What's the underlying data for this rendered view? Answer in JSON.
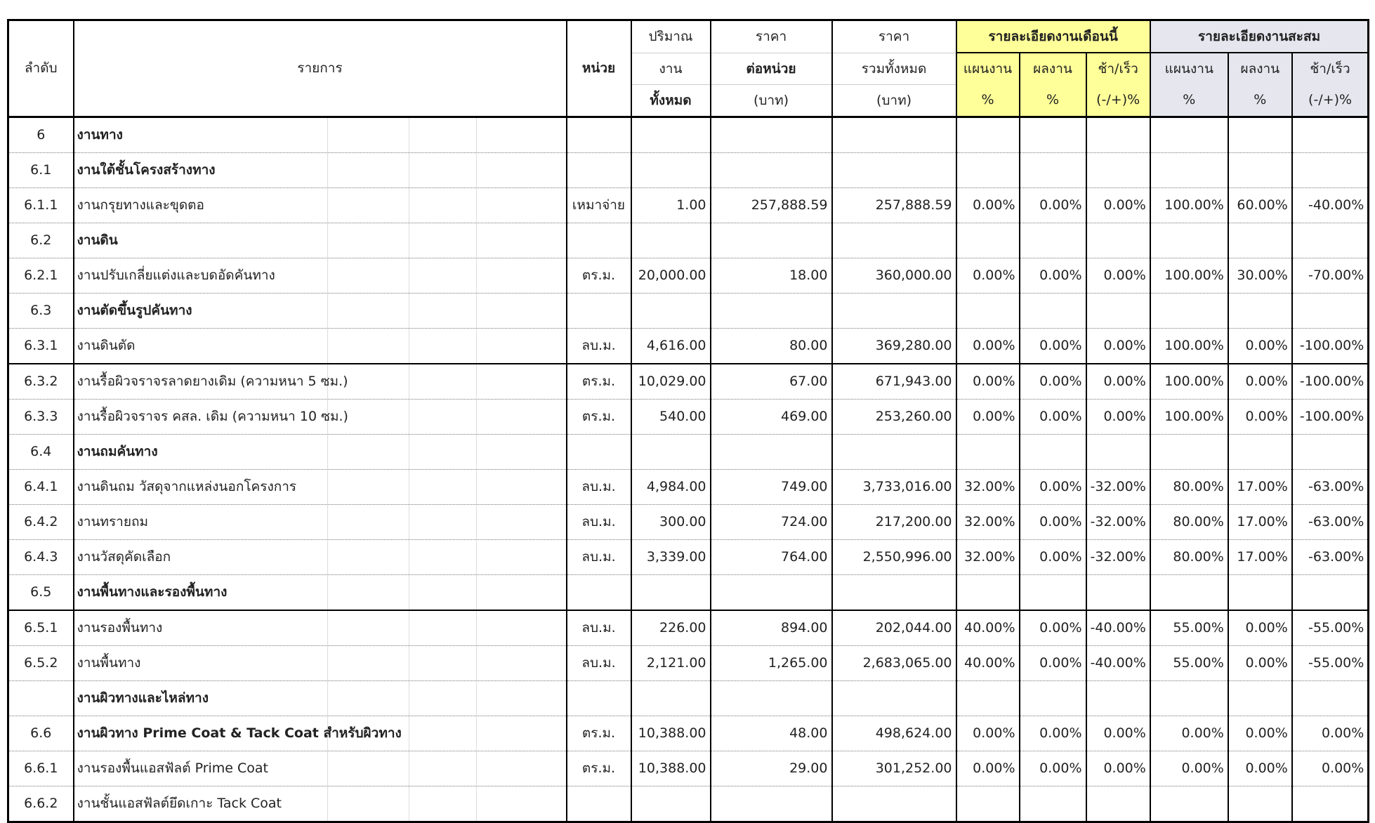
{
  "header": {
    "seq": "ลำดับ",
    "item": "รายการ",
    "unit": "หน่วย",
    "qty": [
      "ปริมาณ",
      "งาน",
      "ทั้งหมด"
    ],
    "unit_price": [
      "ราคา",
      "ต่อหน่วย",
      "(บาท)"
    ],
    "total_price": [
      "ราคา",
      "รวมทั้งหมด",
      "(บาท)"
    ],
    "this_month": "รายละเอียดงานเดือนนี้",
    "cumulative": "รายละเอียดงานสะสม",
    "sub": [
      [
        "แผนงาน",
        "%"
      ],
      [
        "ผลงาน",
        "%"
      ],
      [
        "ช้า/เร็ว",
        "(-/+)%"
      ]
    ]
  },
  "colors": {
    "this_month_bg": "#ffff99",
    "cumulative_bg": "#e6e6ef"
  },
  "rows": [
    {
      "seq": "6",
      "item": "งานทาง",
      "bold": true
    },
    {
      "seq": "6.1",
      "item": "งานใต้ชั้นโครงสร้างทาง",
      "bold": true
    },
    {
      "seq": "6.1.1",
      "item": "งานกรุยทางและขุดตอ",
      "unit": "เหมาจ่าย",
      "qty": "1.00",
      "price": "257,888.59",
      "total": "257,888.59",
      "m_plan": "0.00%",
      "m_done": "0.00%",
      "m_diff": "0.00%",
      "c_plan": "100.00%",
      "c_done": "60.00%",
      "c_diff": "-40.00%"
    },
    {
      "seq": "6.2",
      "item": "งานดิน",
      "bold": true
    },
    {
      "seq": "6.2.1",
      "item": "งานปรับเกลี่ยแต่งและบดอัดคันทาง",
      "unit": "ตร.ม.",
      "qty": "20,000.00",
      "price": "18.00",
      "total": "360,000.00",
      "m_plan": "0.00%",
      "m_done": "0.00%",
      "m_diff": "0.00%",
      "c_plan": "100.00%",
      "c_done": "30.00%",
      "c_diff": "-70.00%"
    },
    {
      "seq": "6.3",
      "item": "งานตัดขึ้นรูปคันทาง",
      "bold": true
    },
    {
      "seq": "6.3.1",
      "item": "งานดินตัด",
      "unit": "ลบ.ม.",
      "qty": "4,616.00",
      "price": "80.00",
      "total": "369,280.00",
      "m_plan": "0.00%",
      "m_done": "0.00%",
      "m_diff": "0.00%",
      "c_plan": "100.00%",
      "c_done": "0.00%",
      "c_diff": "-100.00%",
      "solid": true
    },
    {
      "seq": "6.3.2",
      "item": "งานรื้อผิวจราจรลาดยางเดิม (ความหนา 5 ซม.)",
      "unit": "ตร.ม.",
      "qty": "10,029.00",
      "price": "67.00",
      "total": "671,943.00",
      "m_plan": "0.00%",
      "m_done": "0.00%",
      "m_diff": "0.00%",
      "c_plan": "100.00%",
      "c_done": "0.00%",
      "c_diff": "-100.00%"
    },
    {
      "seq": "6.3.3",
      "item": "งานรื้อผิวจราจร   คสล. เดิม (ความหนา 10 ซม.)",
      "unit": "ตร.ม.",
      "qty": "540.00",
      "price": "469.00",
      "total": "253,260.00",
      "m_plan": "0.00%",
      "m_done": "0.00%",
      "m_diff": "0.00%",
      "c_plan": "100.00%",
      "c_done": "0.00%",
      "c_diff": "-100.00%"
    },
    {
      "seq": "6.4",
      "item": "งานถมคันทาง",
      "bold": true
    },
    {
      "seq": "6.4.1",
      "item": "งานดินถม วัสดุจากแหล่งนอกโครงการ",
      "unit": "ลบ.ม.",
      "qty": "4,984.00",
      "price": "749.00",
      "total": "3,733,016.00",
      "m_plan": "32.00%",
      "m_done": "0.00%",
      "m_diff": "-32.00%",
      "c_plan": "80.00%",
      "c_done": "17.00%",
      "c_diff": "-63.00%"
    },
    {
      "seq": "6.4.2",
      "item": "งานทรายถม",
      "unit": "ลบ.ม.",
      "qty": "300.00",
      "price": "724.00",
      "total": "217,200.00",
      "m_plan": "32.00%",
      "m_done": "0.00%",
      "m_diff": "-32.00%",
      "c_plan": "80.00%",
      "c_done": "17.00%",
      "c_diff": "-63.00%"
    },
    {
      "seq": "6.4.3",
      "item": "งานวัสดุคัดเลือก",
      "unit": "ลบ.ม.",
      "qty": "3,339.00",
      "price": "764.00",
      "total": "2,550,996.00",
      "m_plan": "32.00%",
      "m_done": "0.00%",
      "m_diff": "-32.00%",
      "c_plan": "80.00%",
      "c_done": "17.00%",
      "c_diff": "-63.00%"
    },
    {
      "seq": "6.5",
      "item": "งานพื้นทางและรองพื้นทาง",
      "bold": true,
      "solid": true
    },
    {
      "seq": "6.5.1",
      "item": "งานรองพื้นทาง",
      "unit": "ลบ.ม.",
      "qty": "226.00",
      "price": "894.00",
      "total": "202,044.00",
      "m_plan": "40.00%",
      "m_done": "0.00%",
      "m_diff": "-40.00%",
      "c_plan": "55.00%",
      "c_done": "0.00%",
      "c_diff": "-55.00%"
    },
    {
      "seq": "6.5.2",
      "item": "งานพื้นทาง",
      "unit": "ลบ.ม.",
      "qty": "2,121.00",
      "price": "1,265.00",
      "total": "2,683,065.00",
      "m_plan": "40.00%",
      "m_done": "0.00%",
      "m_diff": "-40.00%",
      "c_plan": "55.00%",
      "c_done": "0.00%",
      "c_diff": "-55.00%"
    },
    {
      "seq": "",
      "item": "งานผิวทางและไหล่ทาง",
      "bold": true
    },
    {
      "seq": "6.6",
      "item": "งานผิวทาง Prime Coat & Tack Coat สำหรับผิวทาง",
      "bold": true,
      "unit": "ตร.ม.",
      "qty": "10,388.00",
      "price": "48.00",
      "total": "498,624.00",
      "m_plan": "0.00%",
      "m_done": "0.00%",
      "m_diff": "0.00%",
      "c_plan": "0.00%",
      "c_done": "0.00%",
      "c_diff": "0.00%"
    },
    {
      "seq": "6.6.1",
      "item": "งานรองพื้นแอสฟัลต์ Prime Coat",
      "unit": "ตร.ม.",
      "qty": "10,388.00",
      "price": "29.00",
      "total": "301,252.00",
      "m_plan": "0.00%",
      "m_done": "0.00%",
      "m_diff": "0.00%",
      "c_plan": "0.00%",
      "c_done": "0.00%",
      "c_diff": "0.00%"
    },
    {
      "seq": "6.6.2",
      "item": "งานชั้นแอสฟัลต์ยึดเกาะ Tack Coat"
    }
  ]
}
